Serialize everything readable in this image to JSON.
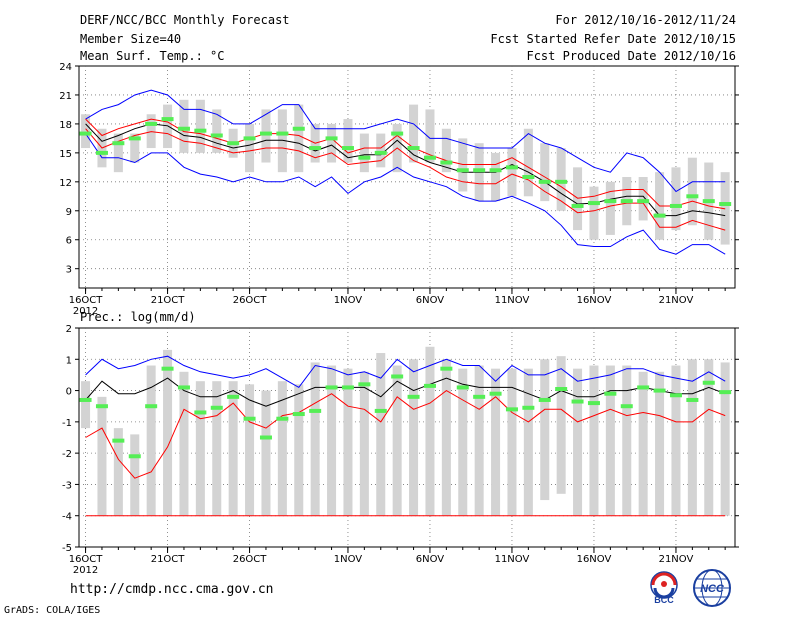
{
  "header": {
    "title": "DERF/NCC/BCC Monthly Forecast",
    "member_size": "Member Size=40",
    "variable": "Mean Surf. Temp.: °C",
    "period": "For 2012/10/16-2012/11/24",
    "refer_date": "Fcst Started Refer Date 2012/10/15",
    "produced_date": "Fcst Produced Date 2012/10/16"
  },
  "footer": {
    "url": "http://cmdp.ncc.cma.gov.cn",
    "credit": "GrADS: COLA/IGES",
    "logo_bcc": "BCC",
    "logo_ncc": "NCC"
  },
  "colors": {
    "mean": "#000000",
    "spread_upper": "#0000ff",
    "spread_lower": "#ff0000",
    "median_marker": "#55ee55",
    "box": "#d3d3d3",
    "frame": "#000000"
  },
  "chart_data": [
    {
      "type": "line",
      "title": "Mean Surf. Temp.: °C",
      "x_label_year": "2012",
      "xticks": [
        {
          "day": 1,
          "label": "16OCT"
        },
        {
          "day": 6,
          "label": "21OCT"
        },
        {
          "day": 11,
          "label": "26OCT"
        },
        {
          "day": 17,
          "label": "1NOV"
        },
        {
          "day": 22,
          "label": "6NOV"
        },
        {
          "day": 27,
          "label": "11NOV"
        },
        {
          "day": 32,
          "label": "16NOV"
        },
        {
          "day": 37,
          "label": "21NOV"
        }
      ],
      "yticks": [
        3,
        6,
        9,
        12,
        15,
        18,
        21,
        24
      ],
      "ylim": [
        1,
        24
      ],
      "xlim": [
        0.6,
        40.6
      ],
      "days": 40,
      "box_low": [
        15.5,
        13.5,
        13.0,
        14.0,
        15.5,
        15.5,
        15.0,
        15.0,
        15.0,
        14.5,
        13.0,
        14.0,
        13.0,
        13.0,
        14.0,
        14.0,
        14.0,
        13.0,
        13.5,
        13.0,
        14.0,
        14.0,
        13.0,
        11.0,
        10.0,
        10.0,
        10.5,
        10.5,
        10.0,
        9.0,
        7.0,
        6.0,
        6.5,
        7.5,
        8.0,
        6.0,
        7.0,
        7.5,
        6.0,
        5.5
      ],
      "box_high": [
        19.0,
        17.5,
        17.0,
        17.0,
        19.0,
        20.0,
        20.5,
        20.5,
        19.5,
        17.5,
        18.0,
        19.5,
        19.5,
        20.0,
        18.0,
        18.0,
        18.5,
        17.0,
        17.0,
        18.0,
        20.0,
        19.5,
        17.5,
        16.5,
        16.0,
        15.0,
        15.5,
        17.5,
        16.0,
        15.5,
        13.5,
        11.5,
        12.0,
        12.5,
        12.5,
        13.0,
        13.5,
        14.5,
        14.0,
        13.0
      ],
      "median": [
        17.0,
        15.0,
        16.0,
        16.5,
        18.0,
        18.5,
        17.5,
        17.3,
        16.8,
        16.0,
        16.5,
        17.0,
        17.0,
        17.5,
        15.5,
        16.5,
        15.5,
        14.5,
        15.0,
        17.0,
        15.5,
        14.5,
        14.0,
        13.2,
        13.2,
        13.2,
        13.5,
        12.5,
        12.0,
        12.0,
        9.5,
        9.8,
        10.0,
        10.0,
        10.0,
        8.5,
        9.5,
        10.5,
        10.0,
        9.7
      ],
      "series": [
        {
          "name": "ensemble-max",
          "color": "#0000ff",
          "values": [
            18.5,
            19.5,
            20.0,
            21.0,
            21.5,
            21.0,
            19.5,
            19.5,
            19.0,
            18.0,
            18.0,
            19.0,
            20.0,
            20.0,
            17.5,
            17.5,
            17.5,
            17.5,
            18.0,
            18.5,
            18.0,
            16.5,
            16.5,
            16.0,
            15.5,
            15.5,
            15.5,
            17.0,
            16.0,
            15.5,
            14.5,
            13.5,
            13.0,
            15.0,
            14.5,
            13.0,
            11.0,
            12.0,
            12.0,
            12.0
          ]
        },
        {
          "name": "mean-plus-sd",
          "color": "#ff0000",
          "values": [
            18.5,
            16.8,
            17.5,
            18.0,
            18.5,
            18.2,
            17.2,
            17.0,
            16.5,
            16.0,
            16.5,
            17.0,
            17.0,
            16.8,
            16.0,
            16.5,
            15.0,
            15.5,
            15.5,
            16.8,
            15.5,
            14.8,
            14.2,
            13.8,
            13.8,
            13.8,
            14.5,
            13.5,
            12.5,
            11.5,
            10.3,
            10.5,
            11.0,
            11.2,
            11.2,
            9.5,
            9.5,
            10.0,
            9.5,
            9.2
          ]
        },
        {
          "name": "ensemble-mean",
          "color": "#000000",
          "values": [
            18.0,
            16.2,
            16.8,
            17.5,
            18.0,
            17.8,
            16.8,
            16.6,
            16.0,
            15.5,
            15.8,
            16.3,
            16.3,
            16.0,
            15.2,
            15.8,
            14.5,
            14.8,
            14.8,
            16.3,
            14.8,
            14.0,
            13.5,
            13.0,
            13.0,
            13.0,
            13.8,
            13.0,
            12.0,
            10.8,
            9.7,
            9.8,
            10.2,
            10.5,
            10.5,
            8.5,
            8.5,
            9.0,
            8.8,
            8.5
          ]
        },
        {
          "name": "mean-minus-sd",
          "color": "#ff0000",
          "values": [
            17.5,
            15.5,
            16.2,
            16.8,
            17.2,
            17.0,
            16.2,
            16.0,
            15.5,
            15.0,
            15.2,
            15.5,
            15.5,
            15.2,
            14.5,
            15.0,
            13.8,
            14.0,
            14.2,
            15.5,
            14.2,
            13.5,
            12.5,
            12.0,
            11.8,
            11.8,
            12.8,
            12.2,
            11.0,
            10.0,
            8.8,
            9.0,
            9.5,
            9.8,
            9.8,
            7.3,
            7.3,
            8.0,
            7.5,
            7.0
          ]
        },
        {
          "name": "ensemble-min",
          "color": "#0000ff",
          "values": [
            17.0,
            14.5,
            14.5,
            14.0,
            15.0,
            15.0,
            13.5,
            12.8,
            12.5,
            12.0,
            12.5,
            12.0,
            12.0,
            12.5,
            11.5,
            12.5,
            10.8,
            12.0,
            12.5,
            13.5,
            12.5,
            12.0,
            11.5,
            10.5,
            10.0,
            10.0,
            10.5,
            9.8,
            9.0,
            7.5,
            5.5,
            5.3,
            5.3,
            6.3,
            7.0,
            5.0,
            4.5,
            5.5,
            5.5,
            4.5
          ]
        }
      ]
    },
    {
      "type": "line",
      "title": "Prec.: log(mm/d)",
      "x_label_year": "2012",
      "xticks": [
        {
          "day": 1,
          "label": "16OCT"
        },
        {
          "day": 6,
          "label": "21OCT"
        },
        {
          "day": 11,
          "label": "26OCT"
        },
        {
          "day": 17,
          "label": "1NOV"
        },
        {
          "day": 22,
          "label": "6NOV"
        },
        {
          "day": 27,
          "label": "11NOV"
        },
        {
          "day": 32,
          "label": "16NOV"
        },
        {
          "day": 37,
          "label": "21NOV"
        }
      ],
      "yticks": [
        -5,
        -4,
        -3,
        -2,
        -1,
        0,
        1,
        2
      ],
      "ylim": [
        -5,
        2
      ],
      "xlim": [
        0.6,
        40.6
      ],
      "days": 40,
      "box_low": [
        -1.2,
        -4,
        -4,
        -4,
        -4,
        -4,
        -4,
        -4,
        -4,
        -4,
        -4,
        -4,
        -4,
        -4,
        -4,
        -4,
        -4,
        -4,
        -4,
        -4,
        -4,
        -4,
        -4,
        -4,
        -4,
        -4,
        -4,
        -4,
        -3.5,
        -3.3,
        -4,
        -4,
        -4,
        -4,
        -4,
        -4,
        -4,
        -4,
        -4,
        -4
      ],
      "box_high": [
        0.3,
        -0.2,
        -1.2,
        -1.4,
        0.8,
        1.3,
        0.6,
        0.3,
        0.3,
        0.3,
        0.2,
        0.0,
        0.3,
        0.2,
        0.9,
        0.8,
        0.7,
        0.6,
        1.2,
        0.8,
        1.0,
        1.4,
        1.0,
        0.7,
        0.8,
        0.7,
        0.7,
        0.7,
        1.0,
        1.1,
        0.7,
        0.8,
        0.8,
        0.8,
        0.6,
        0.6,
        0.8,
        1.0,
        1.0,
        0.9
      ],
      "median": [
        -0.3,
        -0.5,
        -1.6,
        -2.1,
        -0.5,
        0.7,
        0.1,
        -0.7,
        -0.55,
        -0.2,
        -0.9,
        -1.5,
        -0.9,
        -0.75,
        -0.65,
        0.1,
        0.1,
        0.2,
        -0.65,
        0.45,
        -0.2,
        0.15,
        0.7,
        0.1,
        -0.2,
        -0.1,
        -0.6,
        -0.55,
        -0.3,
        0.05,
        -0.35,
        -0.4,
        -0.1,
        -0.5,
        0.1,
        0.0,
        -0.15,
        -0.3,
        0.25,
        -0.05
      ],
      "series": [
        {
          "name": "ensemble-max",
          "color": "#0000ff",
          "values": [
            0.5,
            1.0,
            0.7,
            0.8,
            1.0,
            1.1,
            0.8,
            0.6,
            0.5,
            0.4,
            0.5,
            0.7,
            0.4,
            0.1,
            0.8,
            0.7,
            0.5,
            0.6,
            0.4,
            1.0,
            0.6,
            0.8,
            1.0,
            0.8,
            0.8,
            0.3,
            0.8,
            0.5,
            0.5,
            0.7,
            0.3,
            0.4,
            0.5,
            0.7,
            0.7,
            0.5,
            0.4,
            0.3,
            0.6,
            0.3
          ]
        },
        {
          "name": "mean-plus-sd",
          "color": "#000000",
          "values": [
            -0.3,
            0.3,
            -0.1,
            -0.1,
            0.1,
            0.4,
            0.0,
            -0.2,
            -0.2,
            0.0,
            -0.3,
            -0.5,
            -0.3,
            -0.1,
            0.1,
            0.1,
            0.1,
            0.1,
            -0.2,
            0.3,
            0.0,
            0.2,
            0.4,
            0.2,
            0.1,
            0.1,
            0.1,
            -0.1,
            -0.3,
            0.0,
            -0.2,
            -0.2,
            0.0,
            0.0,
            0.1,
            0.0,
            -0.1,
            -0.1,
            0.1,
            -0.1
          ]
        },
        {
          "name": "mean-minus-sd",
          "color": "#ff0000",
          "values": [
            -1.5,
            -1.2,
            -2.2,
            -2.8,
            -2.6,
            -1.8,
            -0.6,
            -0.9,
            -0.8,
            -0.4,
            -1.0,
            -1.2,
            -0.8,
            -0.7,
            -0.4,
            -0.1,
            -0.5,
            -0.6,
            -1.0,
            -0.2,
            -0.6,
            -0.4,
            0.0,
            -0.3,
            -0.6,
            -0.2,
            -0.7,
            -1.0,
            -0.6,
            -0.6,
            -1.0,
            -0.8,
            -0.6,
            -0.8,
            -0.7,
            -0.8,
            -1.0,
            -1.0,
            -0.6,
            -0.8
          ]
        },
        {
          "name": "ensemble-min",
          "color": "#ff0000",
          "values": [
            -4,
            -4,
            -4,
            -4,
            -4,
            -4,
            -4,
            -4,
            -4,
            -4,
            -4,
            -4,
            -4,
            -4,
            -4,
            -4,
            -4,
            -4,
            -4,
            -4,
            -4,
            -4,
            -4,
            -4,
            -4,
            -4,
            -4,
            -4,
            -4,
            -4,
            -4,
            -4,
            -4,
            -4,
            -4,
            -4,
            -4,
            -4,
            -4,
            -4
          ]
        }
      ]
    }
  ]
}
